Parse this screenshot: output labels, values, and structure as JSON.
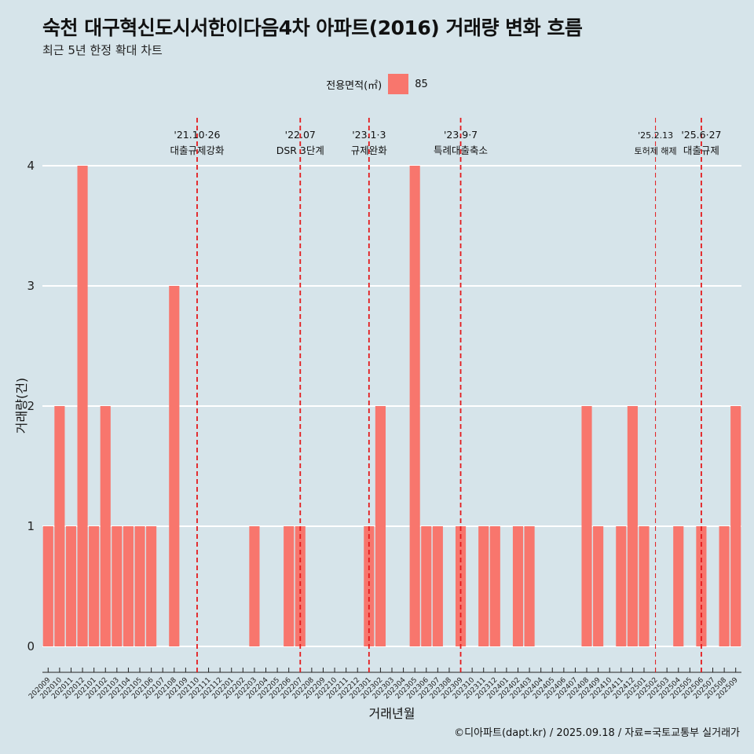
{
  "title": "숙천 대구혁신도시서한이다음4차 아파트(2016) 거래량 변화 흐름",
  "subtitle": "최근 5년 한정 확대 차트",
  "caption": "©디아파트(dapt.kr) / 2025.09.18 / 자료=국토교통부 실거래가",
  "legend": {
    "title": "전용면적(㎡)",
    "item": "85"
  },
  "colors": {
    "bar": "#f8766d",
    "background": "#d6e4ea",
    "grid": "#ffffff",
    "event_line": "#e41a1c"
  },
  "chart_data": {
    "type": "bar",
    "xlabel": "거래년월",
    "ylabel": "거래량(건)",
    "ylim": [
      0,
      4
    ],
    "yticks": [
      0,
      1,
      2,
      3,
      4
    ],
    "legend_position": "top-center",
    "grid": true,
    "categories": [
      "202009",
      "202010",
      "202011",
      "202012",
      "202101",
      "202102",
      "202103",
      "202104",
      "202105",
      "202106",
      "202107",
      "202108",
      "202109",
      "202110",
      "202111",
      "202112",
      "202201",
      "202202",
      "202203",
      "202204",
      "202205",
      "202206",
      "202207",
      "202208",
      "202209",
      "202210",
      "202211",
      "202212",
      "202301",
      "202302",
      "202303",
      "202304",
      "202305",
      "202306",
      "202307",
      "202308",
      "202309",
      "202310",
      "202311",
      "202312",
      "202401",
      "202402",
      "202403",
      "202404",
      "202405",
      "202406",
      "202407",
      "202408",
      "202409",
      "202410",
      "202411",
      "202412",
      "202501",
      "202502",
      "202503",
      "202504",
      "202505",
      "202506",
      "202507",
      "202508",
      "202509"
    ],
    "series": [
      {
        "name": "85",
        "values": [
          1,
          2,
          1,
          4,
          1,
          2,
          1,
          1,
          1,
          1,
          0,
          3,
          0,
          0,
          0,
          0,
          0,
          0,
          1,
          0,
          0,
          1,
          1,
          0,
          0,
          0,
          0,
          0,
          1,
          2,
          0,
          0,
          4,
          1,
          1,
          0,
          1,
          0,
          1,
          1,
          0,
          1,
          1,
          0,
          0,
          0,
          0,
          2,
          1,
          0,
          1,
          2,
          1,
          0,
          0,
          1,
          0,
          1,
          0,
          1,
          2
        ]
      }
    ],
    "annotations": [
      {
        "date_label": "'21.10·26",
        "text": "대출규제강화",
        "x": "202110"
      },
      {
        "date_label": "'22.07",
        "text": "DSR 3단계",
        "x": "202207"
      },
      {
        "date_label": "'23.1·3",
        "text": "규제완화",
        "x": "202301"
      },
      {
        "date_label": "'23.9·7",
        "text": "특례대출축소",
        "x": "202309"
      },
      {
        "date_label": "'25.2.13",
        "text": "토허제 해제",
        "x": "202502"
      },
      {
        "date_label": "'25.6·27",
        "text": "대출규제",
        "x": "202506"
      }
    ]
  }
}
